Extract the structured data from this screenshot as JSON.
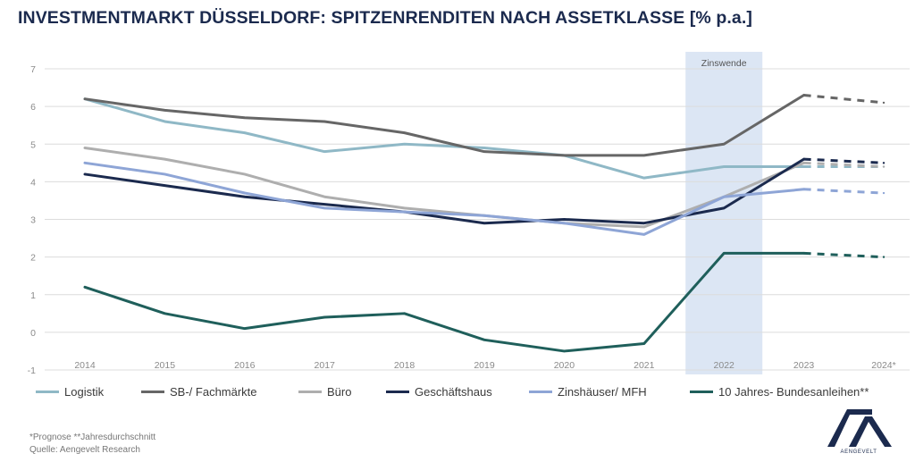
{
  "title": "INVESTMENTMARKT DÜSSELDORF: SPITZENRENDITEN NACH ASSETKLASSE [% p.a.]",
  "footnote": "*Prognose **Jahresdurchschnitt",
  "source": "Quelle: Aengevelt Research",
  "logo_text": "AENGEVELT",
  "chart_data": {
    "type": "line",
    "title": "INVESTMENTMARKT DÜSSELDORF: SPITZENRENDITEN NACH ASSETKLASSE [% p.a.]",
    "xlabel": "",
    "ylabel": "",
    "categories": [
      "2014",
      "2015",
      "2016",
      "2017",
      "2018",
      "2019",
      "2020",
      "2021",
      "2022",
      "2023",
      "2024*"
    ],
    "ylim": [
      -1,
      7
    ],
    "yticks": [
      "-1",
      "0",
      "1",
      "2",
      "3",
      "4",
      "5",
      "6",
      "7"
    ],
    "grid": true,
    "legend_position": "bottom",
    "forecast_from_index": 9,
    "highlight": {
      "category": "2022",
      "label": "Zinswende",
      "color": "#dce6f4"
    },
    "series": [
      {
        "name": "Logistik",
        "color": "#8fb8c6",
        "values": [
          6.2,
          5.6,
          5.3,
          4.8,
          5.0,
          4.9,
          4.7,
          4.1,
          4.4,
          4.4,
          4.4
        ]
      },
      {
        "name": "SB-/ Fachmärkte",
        "color": "#666666",
        "values": [
          6.2,
          5.9,
          5.7,
          5.6,
          5.3,
          4.8,
          4.7,
          4.7,
          5.0,
          6.3,
          6.1
        ]
      },
      {
        "name": "Büro",
        "color": "#aeaeae",
        "values": [
          4.9,
          4.6,
          4.2,
          3.6,
          3.3,
          3.1,
          2.9,
          2.8,
          3.6,
          4.5,
          4.4
        ]
      },
      {
        "name": "Geschäftshaus",
        "color": "#1b2a4e",
        "values": [
          4.2,
          3.9,
          3.6,
          3.4,
          3.2,
          2.9,
          3.0,
          2.9,
          3.3,
          4.6,
          4.5
        ]
      },
      {
        "name": "Zinshäuser/ MFH",
        "color": "#8ea5d6",
        "values": [
          4.5,
          4.2,
          3.7,
          3.3,
          3.2,
          3.1,
          2.9,
          2.6,
          3.6,
          3.8,
          3.7
        ]
      },
      {
        "name": "10 Jahres- Bundesanleihen**",
        "color": "#1f5f5b",
        "values": [
          1.2,
          0.5,
          0.1,
          0.4,
          0.5,
          -0.2,
          -0.5,
          -0.3,
          2.1,
          2.1,
          2.0
        ]
      }
    ]
  }
}
